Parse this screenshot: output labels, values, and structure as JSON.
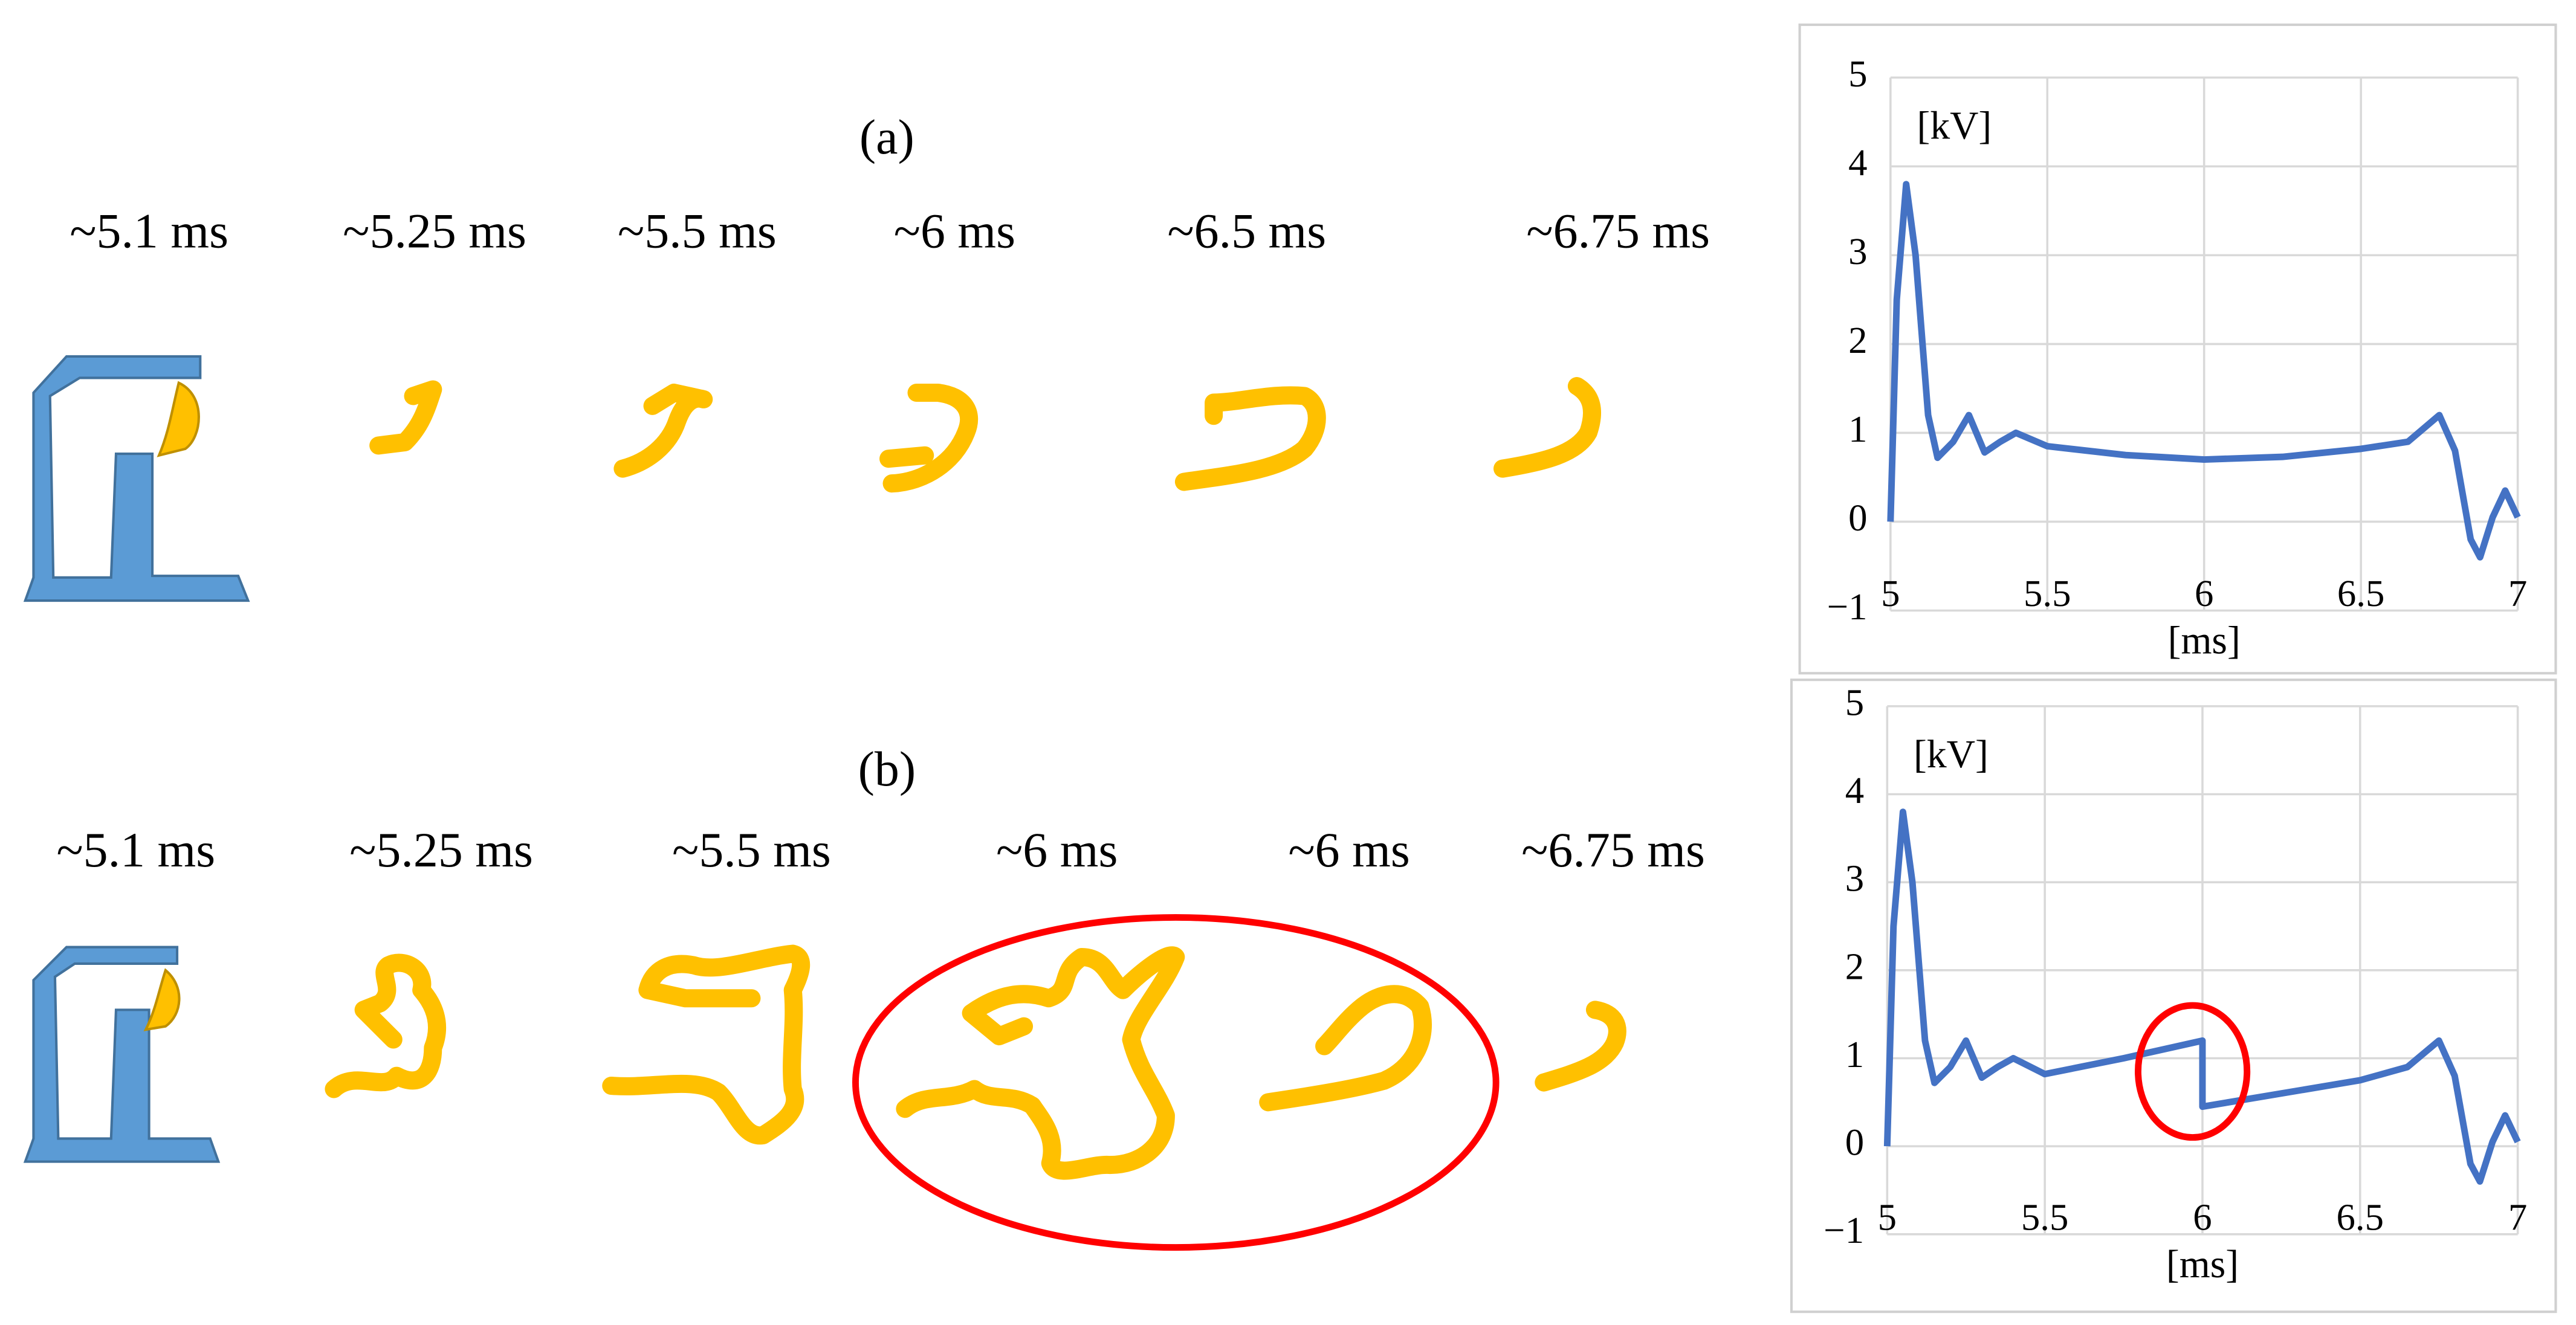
{
  "panels": [
    {
      "label": "(a)",
      "times": [
        "~5.1 ms",
        "~5.25 ms",
        "~5.5 ms",
        "~6 ms",
        "~6.5 ms",
        "~6.75 ms"
      ]
    },
    {
      "label": "(b)",
      "times": [
        "~5.1 ms",
        "~5.25 ms",
        "~5.5 ms",
        "~6 ms",
        "~6 ms",
        "~6.75 ms"
      ]
    }
  ],
  "chart_data": [
    {
      "type": "line",
      "ylabel": "[kV]",
      "xlabel": "[ms]",
      "xlim": [
        5,
        7
      ],
      "ylim": [
        -1,
        5
      ],
      "xticks": [
        5,
        5.5,
        6,
        6.5,
        7
      ],
      "yticks": [
        {
          "value": -1,
          "label": "−1"
        },
        0,
        1,
        2,
        3,
        4,
        5
      ],
      "grid": true,
      "series": [
        {
          "color": "#4472c4",
          "x": [
            5,
            5.02,
            5.05,
            5.08,
            5.12,
            5.15,
            5.2,
            5.25,
            5.3,
            5.35,
            5.4,
            5.5,
            5.75,
            6,
            6.25,
            6.5,
            6.65,
            6.75,
            6.8,
            6.85,
            6.88,
            6.92,
            6.96,
            7
          ],
          "values": [
            0,
            2.5,
            3.8,
            3.0,
            1.2,
            0.72,
            0.9,
            1.2,
            0.78,
            0.9,
            1.0,
            0.85,
            0.75,
            0.7,
            0.73,
            0.82,
            0.9,
            1.2,
            0.8,
            -0.2,
            -0.4,
            0.05,
            0.35,
            0.05
          ]
        }
      ]
    },
    {
      "type": "line",
      "ylabel": "[kV]",
      "xlabel": "[ms]",
      "xlim": [
        5,
        7
      ],
      "ylim": [
        -1,
        5
      ],
      "xticks": [
        5,
        5.5,
        6,
        6.5,
        7
      ],
      "yticks": [
        {
          "value": -1,
          "label": "−1"
        },
        0,
        1,
        2,
        3,
        4,
        5
      ],
      "grid": true,
      "series": [
        {
          "color": "#4472c4",
          "x": [
            5,
            5.02,
            5.05,
            5.08,
            5.12,
            5.15,
            5.2,
            5.25,
            5.3,
            5.35,
            5.4,
            5.5,
            5.75,
            6,
            6,
            6.25,
            6.5,
            6.65,
            6.75,
            6.8,
            6.85,
            6.88,
            6.92,
            6.96,
            7
          ],
          "values": [
            0,
            2.5,
            3.8,
            3.0,
            1.2,
            0.72,
            0.9,
            1.2,
            0.78,
            0.9,
            1.0,
            0.82,
            1.0,
            1.2,
            0.45,
            0.6,
            0.75,
            0.9,
            1.2,
            0.8,
            -0.2,
            -0.4,
            0.05,
            0.35,
            0.05
          ]
        }
      ]
    }
  ]
}
